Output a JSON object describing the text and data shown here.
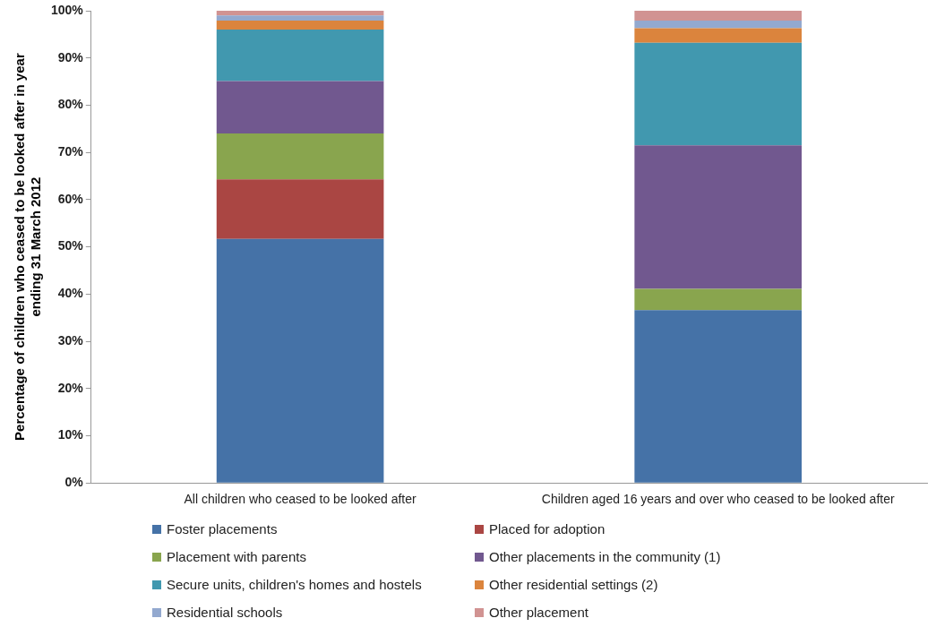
{
  "chart_data": {
    "type": "bar",
    "stacked": true,
    "ylabel": "Percentage of children who ceased to be looked after in year ending 31 March 2012",
    "categories": [
      "All children who ceased to be looked after",
      "Children aged 16 years and over who ceased to be looked after"
    ],
    "ylim": [
      0,
      100
    ],
    "yticks": [
      {
        "value": 0,
        "label": "0%"
      },
      {
        "value": 10,
        "label": "10%"
      },
      {
        "value": 20,
        "label": "20%"
      },
      {
        "value": 30,
        "label": "30%"
      },
      {
        "value": 40,
        "label": "40%"
      },
      {
        "value": 50,
        "label": "50%"
      },
      {
        "value": 60,
        "label": "60%"
      },
      {
        "value": 70,
        "label": "70%"
      },
      {
        "value": 80,
        "label": "80%"
      },
      {
        "value": 90,
        "label": "90%"
      },
      {
        "value": 100,
        "label": "100%"
      }
    ],
    "grid": false,
    "legend": "bottom",
    "series": [
      {
        "name": "Foster placements",
        "color": "#4572a7",
        "values": [
          51.7,
          36.6
        ]
      },
      {
        "name": "Placed for adoption",
        "color": "#aa4643",
        "values": [
          12.6,
          0
        ]
      },
      {
        "name": "Placement with parents",
        "color": "#89a54e",
        "values": [
          9.7,
          4.5
        ]
      },
      {
        "name": "Other placements in the community (1)",
        "color": "#71588f",
        "values": [
          11.1,
          30.4
        ]
      },
      {
        "name": "Secure units, children's homes and hostels",
        "color": "#4198af",
        "values": [
          10.9,
          21.7
        ]
      },
      {
        "name": "Other residential settings (2)",
        "color": "#db843d",
        "values": [
          1.9,
          3.1
        ]
      },
      {
        "name": "Residential schools",
        "color": "#93a9cf",
        "values": [
          1.1,
          1.6
        ]
      },
      {
        "name": "Other placement",
        "color": "#d19392",
        "values": [
          1.0,
          2.1
        ]
      }
    ]
  }
}
